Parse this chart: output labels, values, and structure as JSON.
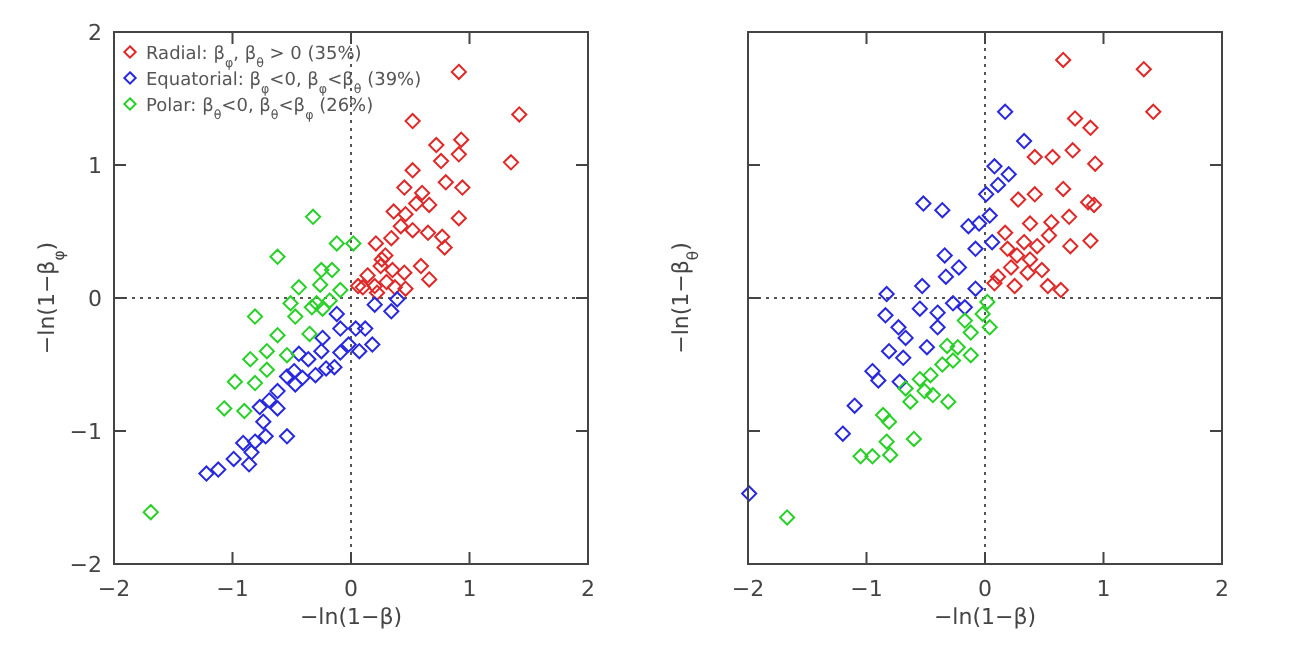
{
  "chart_data": [
    {
      "type": "scatter",
      "xlabel": "−ln(1−β)",
      "ylabel": "−ln(1−β$_{φ}$)",
      "xlim": [
        -2,
        2
      ],
      "ylim": [
        -2,
        2
      ],
      "xticks": [
        -2,
        -1,
        0,
        1,
        2
      ],
      "yticks": [
        -2,
        -1,
        0,
        1,
        2
      ],
      "marker": "diamond",
      "legend": "top left",
      "grid": false,
      "ref_lines": [
        {
          "axis": "x",
          "value": 0,
          "line_style": "dotted"
        },
        {
          "axis": "y",
          "value": 0,
          "line_style": "dotted"
        }
      ],
      "series": [
        {
          "name": "Radial: β$_{φ}$, β$_{θ}$ > 0 (35%)",
          "color": "#e02828",
          "x": [
            0.91,
            1.42,
            0.52,
            1.35,
            0.72,
            0.93,
            0.91,
            0.52,
            0.76,
            0.45,
            0.6,
            0.8,
            0.94,
            0.66,
            0.55,
            0.36,
            0.46,
            0.91,
            0.42,
            0.52,
            0.65,
            0.77,
            0.79,
            0.34,
            0.21,
            0.29,
            0.26,
            0.59,
            0.66,
            0.45,
            0.35,
            0.14,
            0.2,
            0.3,
            0.1,
            0.37,
            0.06,
            0.22,
            0.46,
            0.25
          ],
          "values": [
            1.7,
            1.38,
            1.33,
            1.02,
            1.15,
            1.19,
            1.08,
            0.96,
            1.03,
            0.83,
            0.79,
            0.87,
            0.83,
            0.7,
            0.71,
            0.65,
            0.63,
            0.6,
            0.54,
            0.51,
            0.49,
            0.46,
            0.38,
            0.45,
            0.41,
            0.32,
            0.29,
            0.24,
            0.14,
            0.19,
            0.21,
            0.17,
            0.09,
            0.12,
            0.08,
            0.08,
            0.09,
            0.04,
            0.07,
            0.24
          ]
        },
        {
          "name": "Equatorial: β$_{φ}$<0, β$_{φ}$<β$_{θ}$ (39%)",
          "color": "#2828e0",
          "x": [
            0.39,
            0.34,
            0.2,
            0.04,
            0.18,
            0.07,
            -0.09,
            -0.12,
            -0.24,
            -0.25,
            -0.09,
            -0.14,
            -0.36,
            -0.41,
            -0.48,
            -0.54,
            -0.3,
            -0.21,
            -0.47,
            -0.62,
            -0.69,
            -0.77,
            -0.62,
            -0.74,
            -0.54,
            -0.72,
            -0.81,
            -0.91,
            -0.84,
            -0.99,
            -1.12,
            -1.22,
            -0.86,
            -0.44,
            -0.02,
            0.12
          ],
          "values": [
            -0.01,
            -0.1,
            -0.05,
            -0.23,
            -0.35,
            -0.4,
            -0.23,
            -0.12,
            -0.3,
            -0.4,
            -0.41,
            -0.52,
            -0.46,
            -0.6,
            -0.55,
            -0.59,
            -0.58,
            -0.53,
            -0.65,
            -0.7,
            -0.77,
            -0.82,
            -0.83,
            -0.93,
            -1.04,
            -1.04,
            -1.08,
            -1.09,
            -1.16,
            -1.21,
            -1.29,
            -1.32,
            -1.25,
            -0.42,
            -0.35,
            -0.23
          ]
        },
        {
          "name": "Polar: β$_{θ}$<0, β$_{θ}$<β$_{φ}$ (26%)",
          "color": "#28d028",
          "x": [
            -0.32,
            -0.62,
            -0.12,
            0.02,
            -0.25,
            -0.16,
            -0.44,
            -0.26,
            -0.09,
            -0.51,
            -0.33,
            -0.24,
            -0.81,
            -0.47,
            -0.62,
            -0.35,
            -0.71,
            -0.85,
            -0.54,
            -0.71,
            -0.98,
            -0.81,
            -1.07,
            -0.9,
            -1.69,
            -0.29,
            -0.18
          ],
          "values": [
            0.61,
            0.31,
            0.41,
            0.41,
            0.21,
            0.21,
            0.08,
            0.1,
            0.06,
            -0.04,
            -0.07,
            -0.08,
            -0.14,
            -0.14,
            -0.28,
            -0.27,
            -0.4,
            -0.46,
            -0.43,
            -0.54,
            -0.63,
            -0.64,
            -0.83,
            -0.85,
            -1.61,
            -0.04,
            -0.02
          ]
        }
      ]
    },
    {
      "type": "scatter",
      "xlabel": "−ln(1−β)",
      "ylabel": "−ln(1−β$_{θ}$)",
      "xlim": [
        -2,
        2
      ],
      "ylim": [
        -2,
        2
      ],
      "xticks": [
        -2,
        -1,
        0,
        1,
        2
      ],
      "yticks": [
        -2,
        -1,
        0,
        1,
        2
      ],
      "tick_labels": "x",
      "marker": "diamond",
      "grid": false,
      "ref_lines": [
        {
          "axis": "x",
          "value": 0,
          "line_style": "dotted"
        },
        {
          "axis": "y",
          "value": 0,
          "line_style": "dotted"
        }
      ],
      "series": [
        {
          "color": "#e02828",
          "x": [
            0.66,
            1.34,
            1.42,
            0.76,
            0.89,
            0.42,
            0.57,
            0.74,
            0.93,
            0.42,
            0.66,
            0.87,
            0.92,
            0.28,
            0.71,
            0.56,
            0.38,
            0.54,
            0.89,
            0.72,
            0.33,
            0.19,
            0.27,
            0.38,
            0.48,
            0.22,
            0.11,
            0.08,
            0.25,
            0.53,
            0.64,
            0.36,
            0.44,
            0.17
          ],
          "values": [
            1.79,
            1.72,
            1.4,
            1.35,
            1.28,
            1.06,
            1.06,
            1.11,
            1.01,
            0.78,
            0.82,
            0.72,
            0.7,
            0.74,
            0.61,
            0.57,
            0.56,
            0.47,
            0.43,
            0.39,
            0.42,
            0.37,
            0.32,
            0.29,
            0.21,
            0.23,
            0.16,
            0.11,
            0.09,
            0.09,
            0.06,
            0.19,
            0.39,
            0.49
          ]
        },
        {
          "color": "#2828e0",
          "x": [
            0.17,
            0.33,
            0.08,
            0.2,
            0.11,
            -0.52,
            -0.36,
            0.01,
            0.04,
            -0.14,
            -0.05,
            -0.08,
            0.06,
            -0.34,
            -0.22,
            -0.53,
            -0.33,
            -0.08,
            -0.83,
            -0.55,
            -0.84,
            -0.73,
            -0.4,
            -0.27,
            -0.4,
            -0.67,
            -0.81,
            -0.69,
            -0.49,
            -0.95,
            -0.9,
            -0.72,
            -1.1,
            -1.2,
            -1.99,
            -0.17
          ],
          "values": [
            1.4,
            1.18,
            0.99,
            0.93,
            0.85,
            0.71,
            0.66,
            0.78,
            0.62,
            0.54,
            0.56,
            0.37,
            0.42,
            0.32,
            0.23,
            0.09,
            0.16,
            0.07,
            0.03,
            -0.08,
            -0.13,
            -0.22,
            -0.11,
            -0.04,
            -0.22,
            -0.3,
            -0.4,
            -0.45,
            -0.37,
            -0.55,
            -0.62,
            -0.63,
            -0.81,
            -1.02,
            -1.47,
            -0.07
          ]
        },
        {
          "color": "#28d028",
          "x": [
            0.02,
            -0.02,
            0.04,
            -0.17,
            -0.12,
            -0.32,
            -0.23,
            -0.12,
            -0.27,
            -0.36,
            -0.46,
            -0.55,
            -0.67,
            -0.44,
            -0.31,
            -0.63,
            -0.86,
            -0.81,
            -0.6,
            -0.83,
            -0.8,
            -0.95,
            -1.05,
            -1.67,
            -0.51
          ],
          "values": [
            -0.03,
            -0.12,
            -0.22,
            -0.17,
            -0.26,
            -0.36,
            -0.37,
            -0.43,
            -0.47,
            -0.5,
            -0.58,
            -0.61,
            -0.68,
            -0.73,
            -0.78,
            -0.78,
            -0.88,
            -0.93,
            -1.06,
            -1.08,
            -1.18,
            -1.19,
            -1.19,
            -1.65,
            -0.7
          ]
        }
      ]
    }
  ]
}
